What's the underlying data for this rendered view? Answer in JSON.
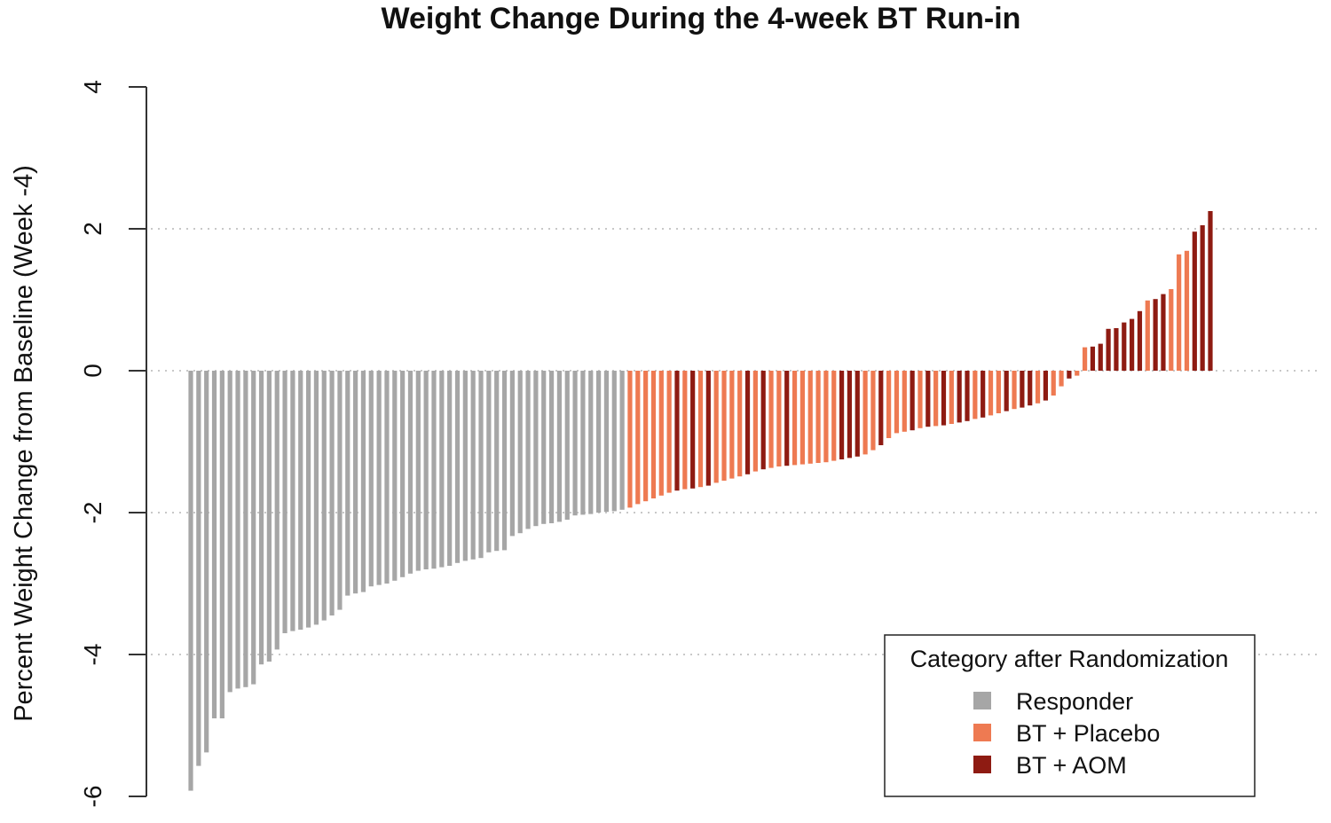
{
  "chart_data": {
    "type": "bar",
    "title": "Weight Change During the 4-week BT Run-in",
    "xlabel": "",
    "ylabel": "Percent Weight Change from Baseline (Week -4)",
    "ylim": [
      -6,
      4
    ],
    "yticks": [
      -6,
      -4,
      -2,
      0,
      2,
      4
    ],
    "grid": "horizontal dotted at y ticks",
    "legend": {
      "title": "Category after Randomization",
      "position": "bottom-right",
      "entries": [
        {
          "key": "Responder",
          "label": "Responder",
          "color": "#a6a6a6"
        },
        {
          "key": "BTPlacebo",
          "label": "BT + Placebo",
          "color": "#ee7a52"
        },
        {
          "key": "BTAOM",
          "label": "BT + AOM",
          "color": "#8e1b12"
        }
      ]
    },
    "colors": {
      "Responder": "#a6a6a6",
      "BTPlacebo": "#ee7a52",
      "BTAOM": "#8e1b12",
      "grid": "#c8c8c8",
      "axis": "#333333"
    },
    "series": [
      {
        "category": "Responder",
        "values": [
          -5.92,
          -5.57,
          -5.38,
          -4.9,
          -4.9,
          -4.53,
          -4.48,
          -4.46,
          -4.42,
          -4.14,
          -4.1,
          -3.93,
          -3.7,
          -3.67,
          -3.65,
          -3.62,
          -3.58,
          -3.52,
          -3.45,
          -3.37,
          -3.17,
          -3.14,
          -3.12,
          -3.04,
          -3.02,
          -3.0,
          -2.96,
          -2.91,
          -2.86,
          -2.82,
          -2.8,
          -2.79,
          -2.77,
          -2.75,
          -2.71,
          -2.68,
          -2.66,
          -2.64,
          -2.56,
          -2.54,
          -2.53,
          -2.33,
          -2.29,
          -2.23,
          -2.19,
          -2.16,
          -2.15,
          -2.13,
          -2.1,
          -2.04,
          -2.03,
          -2.02,
          -2.0,
          -1.99,
          -1.98,
          -1.96
        ]
      },
      {
        "category": "Mixed",
        "values": [
          {
            "c": "BTPlacebo",
            "v": -1.93
          },
          {
            "c": "BTPlacebo",
            "v": -1.88
          },
          {
            "c": "BTPlacebo",
            "v": -1.84
          },
          {
            "c": "BTPlacebo",
            "v": -1.8
          },
          {
            "c": "BTPlacebo",
            "v": -1.76
          },
          {
            "c": "BTPlacebo",
            "v": -1.72
          },
          {
            "c": "BTAOM",
            "v": -1.69
          },
          {
            "c": "BTPlacebo",
            "v": -1.67
          },
          {
            "c": "BTAOM",
            "v": -1.66
          },
          {
            "c": "BTPlacebo",
            "v": -1.64
          },
          {
            "c": "BTAOM",
            "v": -1.62
          },
          {
            "c": "BTPlacebo",
            "v": -1.58
          },
          {
            "c": "BTPlacebo",
            "v": -1.55
          },
          {
            "c": "BTPlacebo",
            "v": -1.52
          },
          {
            "c": "BTPlacebo",
            "v": -1.49
          },
          {
            "c": "BTAOM",
            "v": -1.46
          },
          {
            "c": "BTPlacebo",
            "v": -1.42
          },
          {
            "c": "BTAOM",
            "v": -1.39
          },
          {
            "c": "BTPlacebo",
            "v": -1.37
          },
          {
            "c": "BTPlacebo",
            "v": -1.35
          },
          {
            "c": "BTAOM",
            "v": -1.34
          },
          {
            "c": "BTPlacebo",
            "v": -1.33
          },
          {
            "c": "BTPlacebo",
            "v": -1.32
          },
          {
            "c": "BTPlacebo",
            "v": -1.31
          },
          {
            "c": "BTPlacebo",
            "v": -1.3
          },
          {
            "c": "BTPlacebo",
            "v": -1.29
          },
          {
            "c": "BTPlacebo",
            "v": -1.27
          },
          {
            "c": "BTAOM",
            "v": -1.25
          },
          {
            "c": "BTAOM",
            "v": -1.23
          },
          {
            "c": "BTAOM",
            "v": -1.21
          },
          {
            "c": "BTPlacebo",
            "v": -1.18
          },
          {
            "c": "BTPlacebo",
            "v": -1.12
          },
          {
            "c": "BTAOM",
            "v": -1.05
          },
          {
            "c": "BTPlacebo",
            "v": -0.95
          },
          {
            "c": "BTPlacebo",
            "v": -0.88
          },
          {
            "c": "BTPlacebo",
            "v": -0.86
          },
          {
            "c": "BTAOM",
            "v": -0.84
          },
          {
            "c": "BTPlacebo",
            "v": -0.81
          },
          {
            "c": "BTAOM",
            "v": -0.79
          },
          {
            "c": "BTPlacebo",
            "v": -0.78
          },
          {
            "c": "BTAOM",
            "v": -0.77
          },
          {
            "c": "BTPlacebo",
            "v": -0.75
          },
          {
            "c": "BTAOM",
            "v": -0.73
          },
          {
            "c": "BTAOM",
            "v": -0.71
          },
          {
            "c": "BTPlacebo",
            "v": -0.68
          },
          {
            "c": "BTAOM",
            "v": -0.66
          },
          {
            "c": "BTPlacebo",
            "v": -0.63
          },
          {
            "c": "BTPlacebo",
            "v": -0.6
          },
          {
            "c": "BTAOM",
            "v": -0.57
          },
          {
            "c": "BTPlacebo",
            "v": -0.54
          },
          {
            "c": "BTAOM",
            "v": -0.52
          },
          {
            "c": "BTAOM",
            "v": -0.49
          },
          {
            "c": "BTPlacebo",
            "v": -0.46
          },
          {
            "c": "BTAOM",
            "v": -0.42
          },
          {
            "c": "BTPlacebo",
            "v": -0.35
          },
          {
            "c": "BTPlacebo",
            "v": -0.22
          },
          {
            "c": "BTAOM",
            "v": -0.11
          },
          {
            "c": "BTPlacebo",
            "v": -0.07
          },
          {
            "c": "BTPlacebo",
            "v": 0.33
          },
          {
            "c": "BTAOM",
            "v": 0.34
          },
          {
            "c": "BTAOM",
            "v": 0.38
          },
          {
            "c": "BTAOM",
            "v": 0.59
          },
          {
            "c": "BTAOM",
            "v": 0.6
          },
          {
            "c": "BTAOM",
            "v": 0.68
          },
          {
            "c": "BTAOM",
            "v": 0.73
          },
          {
            "c": "BTAOM",
            "v": 0.84
          },
          {
            "c": "BTPlacebo",
            "v": 0.99
          },
          {
            "c": "BTAOM",
            "v": 1.01
          },
          {
            "c": "BTAOM",
            "v": 1.08
          },
          {
            "c": "BTPlacebo",
            "v": 1.15
          },
          {
            "c": "BTPlacebo",
            "v": 1.64
          },
          {
            "c": "BTPlacebo",
            "v": 1.69
          },
          {
            "c": "BTAOM",
            "v": 1.96
          },
          {
            "c": "BTAOM",
            "v": 2.05
          },
          {
            "c": "BTAOM",
            "v": 2.25
          }
        ]
      }
    ]
  }
}
